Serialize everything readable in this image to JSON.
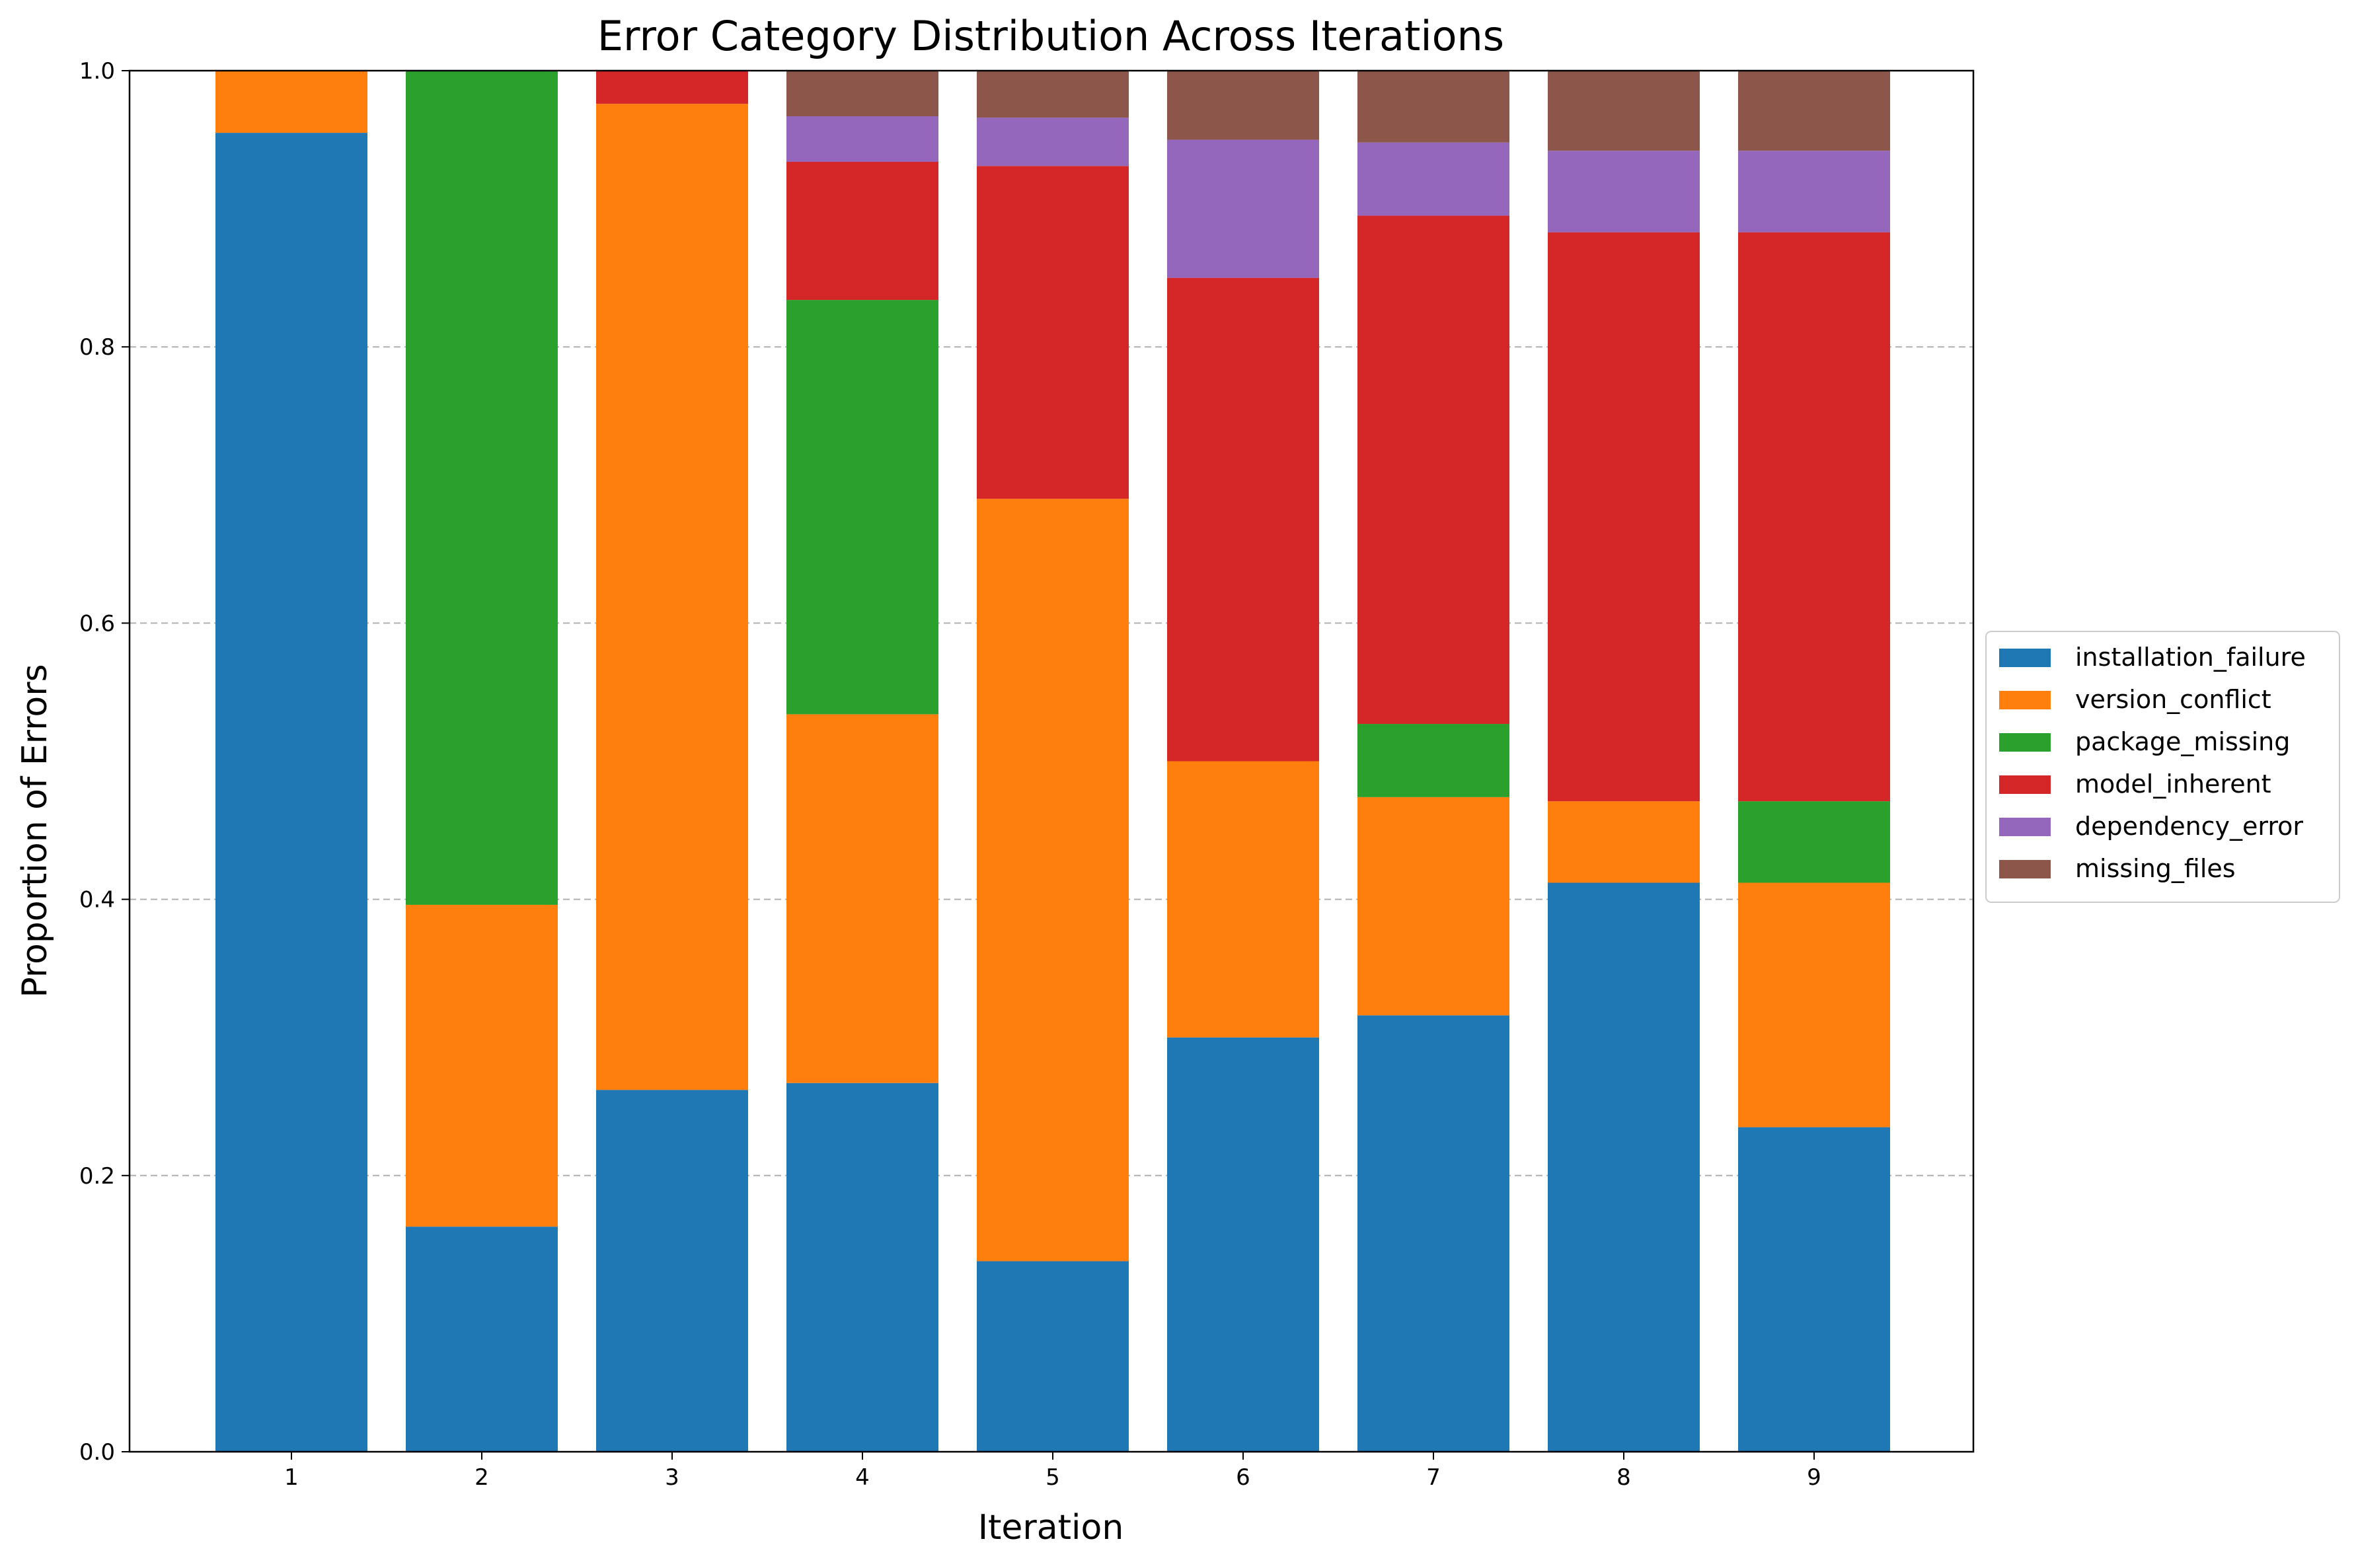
{
  "chart_data": {
    "type": "bar",
    "stacked": true,
    "title": "Error Category Distribution Across Iterations",
    "xlabel": "Iteration",
    "ylabel": "Proportion of Errors",
    "categories": [
      "1",
      "2",
      "3",
      "4",
      "5",
      "6",
      "7",
      "8",
      "9"
    ],
    "ylim": [
      0,
      1.0
    ],
    "yticks": [
      "0.0",
      "0.2",
      "0.4",
      "0.6",
      "0.8",
      "1.0"
    ],
    "grid": "y-dashed",
    "legend_position": "center-right-outside",
    "series": [
      {
        "name": "installation_failure",
        "color": "#1f77b4",
        "values": [
          0.955,
          0.163,
          0.262,
          0.267,
          0.138,
          0.3,
          0.316,
          0.412,
          0.235
        ]
      },
      {
        "name": "version_conflict",
        "color": "#ff7f0e",
        "values": [
          0.045,
          0.233,
          0.714,
          0.267,
          0.552,
          0.2,
          0.158,
          0.059,
          0.177
        ]
      },
      {
        "name": "package_missing",
        "color": "#2ca02c",
        "values": [
          0.0,
          0.604,
          0.0,
          0.3,
          0.0,
          0.0,
          0.053,
          0.0,
          0.059
        ]
      },
      {
        "name": "model_inherent",
        "color": "#d62728",
        "values": [
          0.0,
          0.0,
          0.024,
          0.1,
          0.241,
          0.35,
          0.368,
          0.412,
          0.412
        ]
      },
      {
        "name": "dependency_error",
        "color": "#9467bd",
        "values": [
          0.0,
          0.0,
          0.0,
          0.033,
          0.035,
          0.1,
          0.053,
          0.059,
          0.059
        ]
      },
      {
        "name": "missing_files",
        "color": "#8c564b",
        "values": [
          0.0,
          0.0,
          0.0,
          0.033,
          0.034,
          0.05,
          0.052,
          0.058,
          0.058
        ]
      }
    ]
  }
}
